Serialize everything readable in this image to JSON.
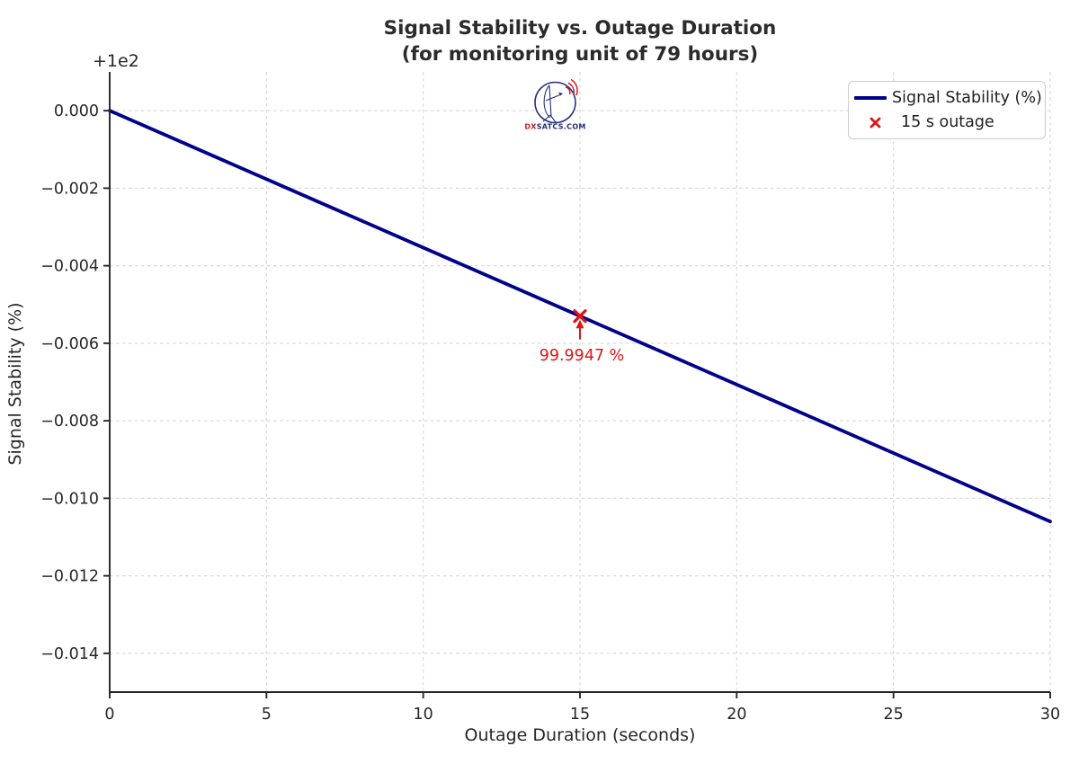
{
  "window": {
    "background": "#ffffff"
  },
  "chart_data": {
    "type": "line",
    "title": "Signal Stability vs. Outage Duration",
    "subtitle": "(for monitoring unit of 79 hours)",
    "xlabel": "Outage Duration (seconds)",
    "ylabel": "Signal Stability (%)",
    "y_axis_offset_label": "+1e2",
    "xlim": [
      0,
      30
    ],
    "ylim": [
      99.985,
      100.001
    ],
    "grid": true,
    "grid_style": "dashed",
    "legend_position": "upper right",
    "xticks": {
      "values": [
        0,
        5,
        10,
        15,
        20,
        25,
        30
      ],
      "labels": [
        "0",
        "5",
        "10",
        "15",
        "20",
        "25",
        "30"
      ]
    },
    "yticks": {
      "values": [
        100.0,
        99.998,
        99.996,
        99.994,
        99.992,
        99.99,
        99.988,
        99.986
      ],
      "labels": [
        "0.000",
        "−0.002",
        "−0.004",
        "−0.006",
        "−0.008",
        "−0.010",
        "−0.012",
        "−0.014"
      ]
    },
    "series": [
      {
        "name": "Signal Stability (%)",
        "color": "#00008b",
        "line_width": 3.8,
        "points": [
          [
            0,
            100.0
          ],
          [
            15,
            99.9947
          ],
          [
            30,
            99.9894
          ]
        ]
      }
    ],
    "marker_point": {
      "label": "15 s outage",
      "symbol": "x",
      "color": "#dc1616",
      "x": 15,
      "y": 99.9947,
      "annotation": "99.9947 %"
    }
  },
  "logo": {
    "text_dx": "DX",
    "text_rest": "SATCS.COM",
    "navy": "#25307a",
    "red": "#c8202a"
  }
}
